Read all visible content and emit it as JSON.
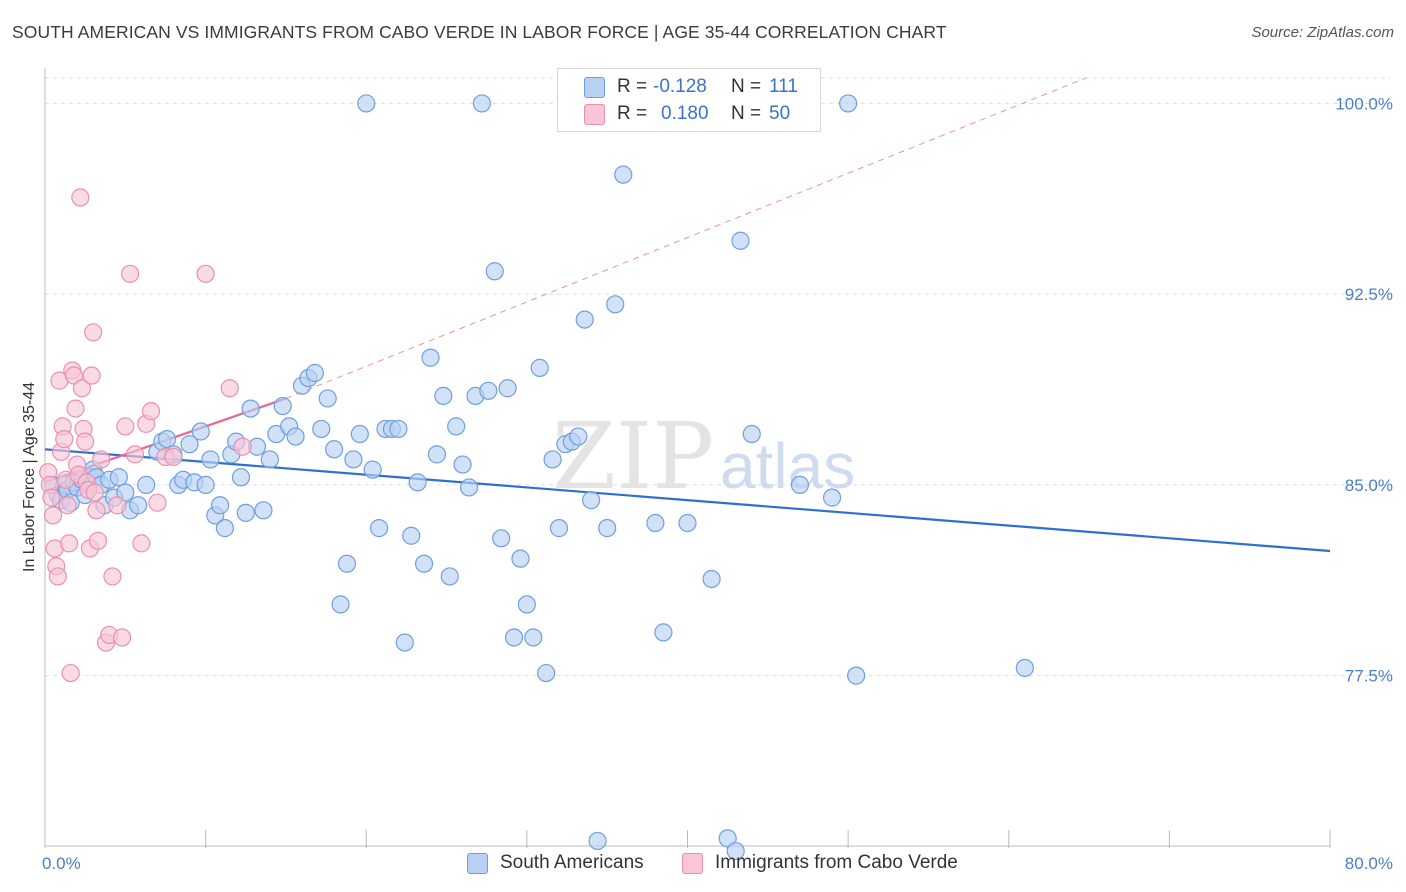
{
  "title": "SOUTH AMERICAN VS IMMIGRANTS FROM CABO VERDE IN LABOR FORCE | AGE 35-44 CORRELATION CHART",
  "source": "Source: ZipAtlas.com",
  "watermark": {
    "zip": "ZIP",
    "atlas": "atlas"
  },
  "colors": {
    "blue_fill": "#b8d1f2",
    "blue_stroke": "#6f9fde",
    "blue_line": "#2f6fcf",
    "pink_fill": "#f8c6d6",
    "pink_stroke": "#ec8fae",
    "pink_line": "#e8668f",
    "grid": "#dddddd",
    "tick_text": "#4a7ec9"
  },
  "legend": {
    "rows": [
      {
        "r_label": "R =",
        "r_value": "-0.128",
        "n_label": "N =",
        "n_value": "111",
        "color": "#b8d1f2",
        "border": "#6f9fde"
      },
      {
        "r_label": "R =",
        "r_value": "0.180",
        "n_label": "N =",
        "n_value": "50",
        "color": "#f8c6d6",
        "border": "#ec8fae"
      }
    ]
  },
  "bottom_legend": [
    {
      "label": "South Americans",
      "color": "#b8d1f2",
      "border": "#6f9fde"
    },
    {
      "label": "Immigrants from Cabo Verde",
      "color": "#f8c6d6",
      "border": "#ec8fae"
    }
  ],
  "chart_data": {
    "type": "scatter",
    "title": "SOUTH AMERICAN VS IMMIGRANTS FROM CABO VERDE IN LABOR FORCE | AGE 35-44 CORRELATION CHART",
    "xlabel": "",
    "ylabel": "In Labor Force | Age 35-44",
    "xlim": [
      0,
      80
    ],
    "ylim": [
      70.8,
      101.0
    ],
    "x_tick_labels": [
      "0.0%",
      "80.0%"
    ],
    "y_ticks": [
      77.5,
      85.0,
      92.5,
      100.0
    ],
    "y_tick_labels": [
      "77.5%",
      "85.0%",
      "92.5%",
      "100.0%"
    ],
    "series": [
      {
        "name": "South Americans",
        "r": -0.128,
        "n": 111,
        "trend": {
          "x0": 0,
          "y0": 86.4,
          "x1": 80,
          "y1": 82.4
        },
        "points": [
          [
            0.5,
            85.0
          ],
          [
            0.8,
            84.6
          ],
          [
            1.0,
            84.4
          ],
          [
            1.2,
            85.0
          ],
          [
            1.4,
            84.8
          ],
          [
            1.6,
            84.3
          ],
          [
            1.8,
            85.1
          ],
          [
            2.0,
            84.9
          ],
          [
            2.3,
            85.2
          ],
          [
            2.5,
            84.6
          ],
          [
            2.8,
            85.3
          ],
          [
            3.0,
            85.6
          ],
          [
            3.2,
            85.3
          ],
          [
            3.5,
            85.0
          ],
          [
            3.7,
            84.2
          ],
          [
            4.0,
            85.2
          ],
          [
            4.3,
            84.5
          ],
          [
            4.6,
            85.3
          ],
          [
            5.0,
            84.7
          ],
          [
            5.3,
            84.0
          ],
          [
            5.8,
            84.2
          ],
          [
            6.3,
            85.0
          ],
          [
            7.0,
            86.3
          ],
          [
            7.3,
            86.7
          ],
          [
            7.6,
            86.8
          ],
          [
            8.0,
            86.2
          ],
          [
            8.3,
            85.0
          ],
          [
            8.6,
            85.2
          ],
          [
            9.0,
            86.6
          ],
          [
            9.3,
            85.1
          ],
          [
            9.7,
            87.1
          ],
          [
            10.0,
            85.0
          ],
          [
            10.3,
            86.0
          ],
          [
            10.6,
            83.8
          ],
          [
            10.9,
            84.2
          ],
          [
            11.2,
            83.3
          ],
          [
            11.6,
            86.2
          ],
          [
            11.9,
            86.7
          ],
          [
            12.2,
            85.3
          ],
          [
            12.5,
            83.9
          ],
          [
            12.8,
            88.0
          ],
          [
            13.2,
            86.5
          ],
          [
            13.6,
            84.0
          ],
          [
            14.0,
            86.0
          ],
          [
            14.4,
            87.0
          ],
          [
            14.8,
            88.1
          ],
          [
            15.2,
            87.3
          ],
          [
            15.6,
            86.9
          ],
          [
            16.0,
            88.9
          ],
          [
            16.4,
            89.2
          ],
          [
            16.8,
            89.4
          ],
          [
            17.2,
            87.2
          ],
          [
            17.6,
            88.4
          ],
          [
            18.0,
            86.4
          ],
          [
            18.4,
            80.3
          ],
          [
            18.8,
            81.9
          ],
          [
            19.2,
            86.0
          ],
          [
            19.6,
            87.0
          ],
          [
            20.0,
            100.0
          ],
          [
            20.4,
            85.6
          ],
          [
            20.8,
            83.3
          ],
          [
            21.2,
            87.2
          ],
          [
            21.6,
            87.2
          ],
          [
            22.0,
            87.2
          ],
          [
            22.4,
            78.8
          ],
          [
            22.8,
            83.0
          ],
          [
            23.2,
            85.1
          ],
          [
            23.6,
            81.9
          ],
          [
            24.0,
            90.0
          ],
          [
            24.4,
            86.2
          ],
          [
            24.8,
            88.5
          ],
          [
            25.2,
            81.4
          ],
          [
            25.6,
            87.3
          ],
          [
            26.0,
            85.8
          ],
          [
            26.4,
            84.9
          ],
          [
            26.8,
            88.5
          ],
          [
            27.2,
            100.0
          ],
          [
            27.6,
            88.7
          ],
          [
            28.0,
            93.4
          ],
          [
            28.4,
            82.9
          ],
          [
            28.8,
            88.8
          ],
          [
            29.2,
            79.0
          ],
          [
            29.6,
            82.1
          ],
          [
            30.0,
            80.3
          ],
          [
            30.4,
            79.0
          ],
          [
            30.8,
            89.6
          ],
          [
            31.2,
            77.6
          ],
          [
            31.6,
            86.0
          ],
          [
            32.0,
            83.3
          ],
          [
            32.4,
            86.6
          ],
          [
            32.8,
            86.7
          ],
          [
            33.2,
            86.9
          ],
          [
            33.6,
            91.5
          ],
          [
            34.0,
            84.4
          ],
          [
            34.4,
            71.0
          ],
          [
            35.0,
            83.3
          ],
          [
            35.5,
            92.1
          ],
          [
            36.0,
            97.2
          ],
          [
            38.0,
            83.5
          ],
          [
            38.5,
            79.2
          ],
          [
            40.0,
            83.5
          ],
          [
            41.5,
            81.3
          ],
          [
            42.5,
            71.1
          ],
          [
            43.0,
            70.6
          ],
          [
            43.3,
            94.6
          ],
          [
            44.0,
            87.0
          ],
          [
            47.0,
            85.0
          ],
          [
            49.0,
            84.5
          ],
          [
            50.0,
            100.0
          ],
          [
            50.5,
            77.5
          ],
          [
            61.0,
            77.8
          ]
        ]
      },
      {
        "name": "Immigrants from Cabo Verde",
        "r": 0.18,
        "n": 50,
        "trend": {
          "x0": 0,
          "y0": 85.1,
          "x1": 15.0,
          "y1": 88.4
        },
        "trend_extension": {
          "x0": 15.0,
          "y0": 88.4,
          "x1": 64.8,
          "y1": 101.0
        },
        "points": [
          [
            0.2,
            85.5
          ],
          [
            0.3,
            85.0
          ],
          [
            0.4,
            84.5
          ],
          [
            0.5,
            83.8
          ],
          [
            0.6,
            82.5
          ],
          [
            0.7,
            81.8
          ],
          [
            0.8,
            81.4
          ],
          [
            0.9,
            89.1
          ],
          [
            1.0,
            86.3
          ],
          [
            1.1,
            87.3
          ],
          [
            1.2,
            86.8
          ],
          [
            1.3,
            85.2
          ],
          [
            1.4,
            84.2
          ],
          [
            1.5,
            82.7
          ],
          [
            1.6,
            77.6
          ],
          [
            1.7,
            89.5
          ],
          [
            1.8,
            89.3
          ],
          [
            1.9,
            88.0
          ],
          [
            2.0,
            85.8
          ],
          [
            2.1,
            85.4
          ],
          [
            2.2,
            96.3
          ],
          [
            2.3,
            88.8
          ],
          [
            2.4,
            87.2
          ],
          [
            2.5,
            86.7
          ],
          [
            2.6,
            85.1
          ],
          [
            2.7,
            84.8
          ],
          [
            2.8,
            82.5
          ],
          [
            2.9,
            89.3
          ],
          [
            3.0,
            91.0
          ],
          [
            3.1,
            84.7
          ],
          [
            3.2,
            84.0
          ],
          [
            3.3,
            82.8
          ],
          [
            3.5,
            86.0
          ],
          [
            3.8,
            78.8
          ],
          [
            4.0,
            79.1
          ],
          [
            4.2,
            81.4
          ],
          [
            4.5,
            84.2
          ],
          [
            4.8,
            79.0
          ],
          [
            5.0,
            87.3
          ],
          [
            5.3,
            93.3
          ],
          [
            5.6,
            86.2
          ],
          [
            6.0,
            82.7
          ],
          [
            6.3,
            87.4
          ],
          [
            6.6,
            87.9
          ],
          [
            7.0,
            84.3
          ],
          [
            7.5,
            86.1
          ],
          [
            8.0,
            86.1
          ],
          [
            10.0,
            93.3
          ],
          [
            11.5,
            88.8
          ],
          [
            12.3,
            86.5
          ]
        ]
      }
    ]
  }
}
